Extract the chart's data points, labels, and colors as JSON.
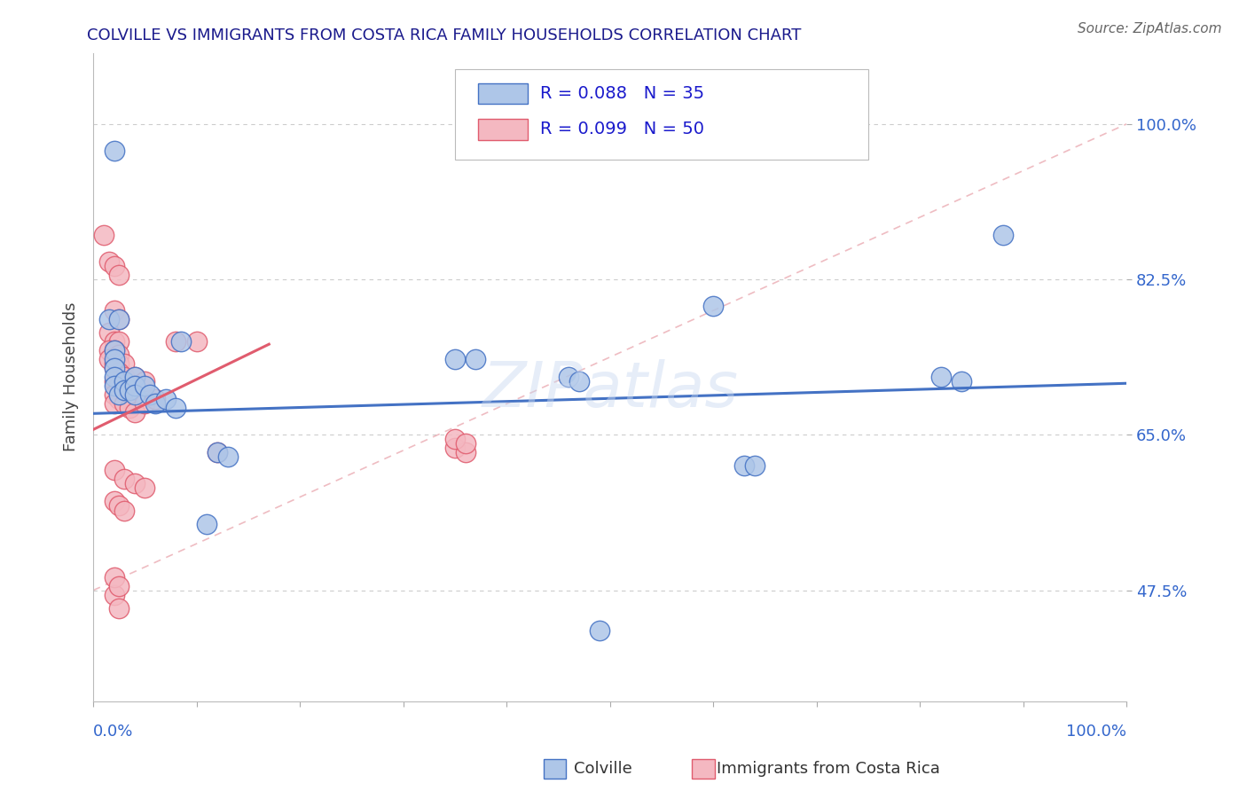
{
  "title": "COLVILLE VS IMMIGRANTS FROM COSTA RICA FAMILY HOUSEHOLDS CORRELATION CHART",
  "source": "Source: ZipAtlas.com",
  "ylabel": "Family Households",
  "ytick_vals": [
    0.475,
    0.65,
    0.825,
    1.0
  ],
  "ytick_labels": [
    "47.5%",
    "65.0%",
    "82.5%",
    "100.0%"
  ],
  "xrange": [
    0.0,
    1.0
  ],
  "yrange": [
    0.35,
    1.08
  ],
  "legend_items": [
    {
      "label": "R = 0.088   N = 35",
      "face": "#aec6e8",
      "edge": "#4472c4"
    },
    {
      "label": "R = 0.099   N = 50",
      "face": "#f4b8c1",
      "edge": "#e05c6e"
    }
  ],
  "colville_points": [
    [
      0.02,
      0.97
    ],
    [
      0.015,
      0.78
    ],
    [
      0.025,
      0.78
    ],
    [
      0.02,
      0.745
    ],
    [
      0.02,
      0.735
    ],
    [
      0.02,
      0.725
    ],
    [
      0.02,
      0.715
    ],
    [
      0.02,
      0.705
    ],
    [
      0.025,
      0.695
    ],
    [
      0.03,
      0.71
    ],
    [
      0.03,
      0.7
    ],
    [
      0.035,
      0.7
    ],
    [
      0.04,
      0.715
    ],
    [
      0.04,
      0.705
    ],
    [
      0.04,
      0.695
    ],
    [
      0.05,
      0.705
    ],
    [
      0.055,
      0.695
    ],
    [
      0.06,
      0.685
    ],
    [
      0.07,
      0.69
    ],
    [
      0.08,
      0.68
    ],
    [
      0.085,
      0.755
    ],
    [
      0.12,
      0.63
    ],
    [
      0.13,
      0.625
    ],
    [
      0.35,
      0.735
    ],
    [
      0.37,
      0.735
    ],
    [
      0.46,
      0.715
    ],
    [
      0.47,
      0.71
    ],
    [
      0.6,
      0.795
    ],
    [
      0.63,
      0.615
    ],
    [
      0.64,
      0.615
    ],
    [
      0.82,
      0.715
    ],
    [
      0.84,
      0.71
    ],
    [
      0.88,
      0.875
    ],
    [
      0.49,
      0.43
    ],
    [
      0.11,
      0.55
    ]
  ],
  "costarica_points": [
    [
      0.01,
      0.875
    ],
    [
      0.015,
      0.845
    ],
    [
      0.02,
      0.84
    ],
    [
      0.025,
      0.83
    ],
    [
      0.02,
      0.79
    ],
    [
      0.025,
      0.78
    ],
    [
      0.015,
      0.765
    ],
    [
      0.02,
      0.755
    ],
    [
      0.025,
      0.755
    ],
    [
      0.015,
      0.745
    ],
    [
      0.02,
      0.745
    ],
    [
      0.025,
      0.74
    ],
    [
      0.015,
      0.735
    ],
    [
      0.02,
      0.73
    ],
    [
      0.025,
      0.73
    ],
    [
      0.03,
      0.73
    ],
    [
      0.02,
      0.725
    ],
    [
      0.025,
      0.72
    ],
    [
      0.03,
      0.715
    ],
    [
      0.02,
      0.71
    ],
    [
      0.025,
      0.705
    ],
    [
      0.03,
      0.7
    ],
    [
      0.04,
      0.715
    ],
    [
      0.05,
      0.71
    ],
    [
      0.02,
      0.695
    ],
    [
      0.025,
      0.69
    ],
    [
      0.02,
      0.685
    ],
    [
      0.03,
      0.685
    ],
    [
      0.035,
      0.68
    ],
    [
      0.04,
      0.675
    ],
    [
      0.05,
      0.685
    ],
    [
      0.06,
      0.69
    ],
    [
      0.08,
      0.755
    ],
    [
      0.1,
      0.755
    ],
    [
      0.12,
      0.63
    ],
    [
      0.02,
      0.61
    ],
    [
      0.03,
      0.6
    ],
    [
      0.04,
      0.595
    ],
    [
      0.05,
      0.59
    ],
    [
      0.02,
      0.575
    ],
    [
      0.025,
      0.57
    ],
    [
      0.03,
      0.565
    ],
    [
      0.02,
      0.47
    ],
    [
      0.025,
      0.455
    ],
    [
      0.35,
      0.635
    ],
    [
      0.36,
      0.63
    ],
    [
      0.02,
      0.49
    ],
    [
      0.025,
      0.48
    ],
    [
      0.35,
      0.645
    ],
    [
      0.36,
      0.64
    ]
  ],
  "colville_color": "#aec6e8",
  "costarica_color": "#f4b8c1",
  "colville_line_color": "#4472c4",
  "costarica_line_color": "#e05c6e",
  "colville_trend": [
    0.0,
    1.0,
    0.674,
    0.708
  ],
  "costarica_trend": [
    0.0,
    0.17,
    0.656,
    0.752
  ],
  "ref_line": [
    0.0,
    1.0,
    0.475,
    1.0
  ],
  "watermark": "ZIPatlas",
  "background_color": "#ffffff",
  "grid_color": "#cccccc"
}
